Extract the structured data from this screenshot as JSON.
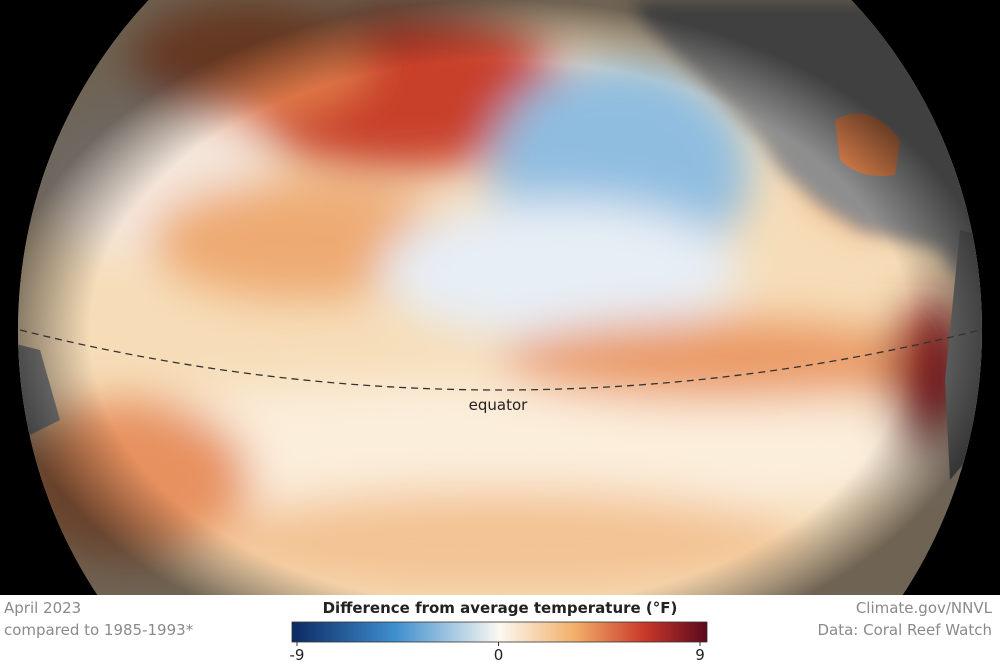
{
  "map": {
    "equator_label": "equator"
  },
  "footer": {
    "date": "April 2023",
    "baseline": "compared to 1985-1993*",
    "credit": "Climate.gov/NNVL",
    "source": "Data: Coral Reef Watch"
  },
  "legend": {
    "title": "Difference from average temperature (°F)",
    "range": [
      -9,
      9
    ],
    "ticks": [
      -9,
      0,
      9
    ]
  }
}
